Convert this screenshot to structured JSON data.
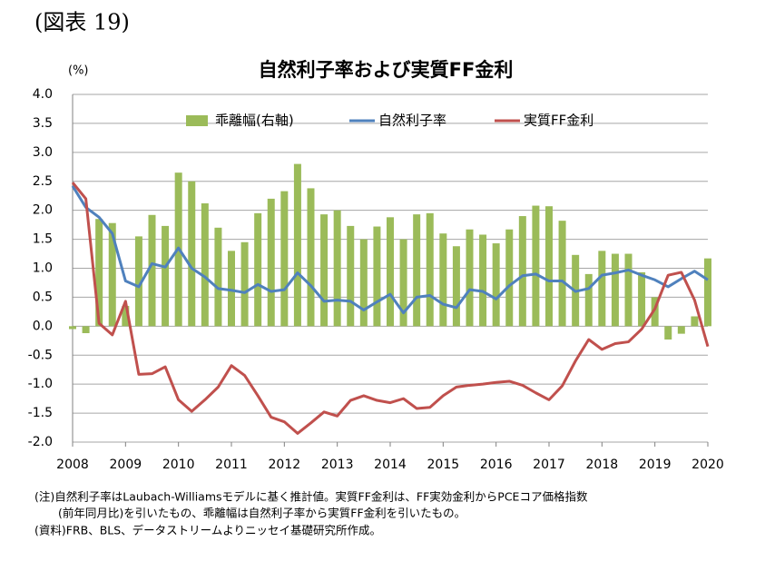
{
  "header": {
    "label": "(図表 19)"
  },
  "chart_data": {
    "type": "bar-line",
    "title": "自然利子率および実質FF金利",
    "y_unit": "(%)",
    "x": [
      2008,
      2008.25,
      2008.5,
      2008.75,
      2009,
      2009.25,
      2009.5,
      2009.75,
      2010,
      2010.25,
      2010.5,
      2010.75,
      2011,
      2011.25,
      2011.5,
      2011.75,
      2012,
      2012.25,
      2012.5,
      2012.75,
      2013,
      2013.25,
      2013.5,
      2013.75,
      2014,
      2014.25,
      2014.5,
      2014.75,
      2015,
      2015.25,
      2015.5,
      2015.75,
      2016,
      2016.25,
      2016.5,
      2016.75,
      2017,
      2017.25,
      2017.5,
      2017.75,
      2018,
      2018.25,
      2018.5,
      2018.75,
      2019,
      2019.25,
      2019.5,
      2019.75,
      2020
    ],
    "series": [
      {
        "name": "乖離幅(右軸)",
        "kind": "bar",
        "color": "#9bbb59",
        "values": [
          -0.05,
          -0.12,
          1.85,
          1.78,
          0.35,
          1.55,
          1.92,
          1.73,
          2.65,
          2.5,
          2.12,
          1.7,
          1.3,
          1.45,
          1.95,
          2.2,
          2.33,
          2.8,
          2.38,
          1.93,
          2.0,
          1.73,
          1.5,
          1.72,
          1.88,
          1.5,
          1.93,
          1.95,
          1.6,
          1.38,
          1.67,
          1.58,
          1.43,
          1.67,
          1.9,
          2.08,
          2.07,
          1.82,
          1.23,
          0.9,
          1.3,
          1.25,
          1.25,
          0.93,
          0.5,
          -0.23,
          -0.13,
          0.17,
          1.17
        ]
      },
      {
        "name": "自然利子率",
        "kind": "line",
        "color": "#4f81bd",
        "values": [
          2.42,
          2.05,
          1.88,
          1.6,
          0.78,
          0.68,
          1.08,
          1.02,
          1.35,
          1.0,
          0.85,
          0.65,
          0.62,
          0.58,
          0.72,
          0.6,
          0.63,
          0.92,
          0.7,
          0.43,
          0.45,
          0.43,
          0.28,
          0.42,
          0.55,
          0.23,
          0.5,
          0.53,
          0.38,
          0.32,
          0.63,
          0.6,
          0.47,
          0.7,
          0.87,
          0.9,
          0.78,
          0.78,
          0.6,
          0.65,
          0.88,
          0.92,
          0.97,
          0.88,
          0.8,
          0.68,
          0.82,
          0.95,
          0.8
        ]
      },
      {
        "name": "実質FF金利",
        "kind": "line",
        "color": "#c0504d",
        "values": [
          2.48,
          2.2,
          0.05,
          -0.15,
          0.43,
          -0.83,
          -0.82,
          -0.7,
          -1.27,
          -1.47,
          -1.27,
          -1.05,
          -0.68,
          -0.85,
          -1.2,
          -1.57,
          -1.65,
          -1.85,
          -1.67,
          -1.48,
          -1.55,
          -1.28,
          -1.2,
          -1.28,
          -1.32,
          -1.25,
          -1.42,
          -1.4,
          -1.2,
          -1.05,
          -1.02,
          -1.0,
          -0.97,
          -0.95,
          -1.02,
          -1.15,
          -1.27,
          -1.03,
          -0.6,
          -0.23,
          -0.4,
          -0.3,
          -0.27,
          -0.05,
          0.3,
          0.88,
          0.93,
          0.45,
          -0.35
        ]
      }
    ],
    "xlim": [
      2008,
      2020
    ],
    "xticks": [
      2008,
      2009,
      2010,
      2011,
      2012,
      2013,
      2014,
      2015,
      2016,
      2017,
      2018,
      2019,
      2020
    ],
    "ylim": [
      -2,
      4
    ],
    "yticks": [
      {
        "value": -2,
        "label": "-2.0"
      },
      -1.5,
      {
        "value": -1,
        "label": "-1.0"
      },
      -0.5,
      {
        "value": 0,
        "label": "0.0"
      },
      0.5,
      {
        "value": 1,
        "label": "1.0"
      },
      1.5,
      {
        "value": 2,
        "label": "2.0"
      },
      2.5,
      {
        "value": 3,
        "label": "3.0"
      },
      3.5,
      {
        "value": 4,
        "label": "4.0"
      }
    ],
    "grid": true,
    "legend": "top"
  },
  "notes": [
    "(注)自然利子率はLaubach-Williamsモデルに基く推計値。実質FF金利は、FF実効金利からPCEコア価格指数",
    "(前年同月比)を引いたもの、乖離幅は自然利子率から実質FF金利を引いたもの。",
    "(資料)FRB、BLS、データストリームよりニッセイ基礎研究所作成。"
  ]
}
